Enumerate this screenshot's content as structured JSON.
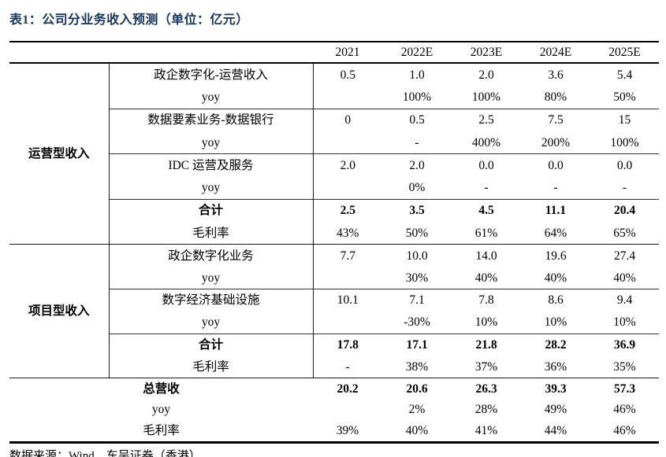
{
  "title": "表1：公司分业务收入预测（单位：亿元）",
  "header": {
    "years": [
      "2021",
      "2022E",
      "2023E",
      "2024E",
      "2025E"
    ]
  },
  "table": {
    "sections": [
      {
        "group": "运营型收入",
        "rows": [
          {
            "label": "政企数字化-运营收入",
            "bold": false,
            "divider_below": false,
            "values": [
              "0.5",
              "1.0",
              "2.0",
              "3.6",
              "5.4"
            ]
          },
          {
            "label": "yoy",
            "bold": false,
            "divider_below": true,
            "values": [
              "",
              "100%",
              "100%",
              "80%",
              "50%"
            ]
          },
          {
            "label": "数据要素业务-数据银行",
            "bold": false,
            "divider_below": false,
            "values": [
              "0",
              "0.5",
              "2.5",
              "7.5",
              "15"
            ]
          },
          {
            "label": "yoy",
            "bold": false,
            "divider_below": true,
            "values": [
              "",
              "-",
              "400%",
              "200%",
              "100%"
            ]
          },
          {
            "label": "IDC 运营及服务",
            "bold": false,
            "divider_below": false,
            "values": [
              "2.0",
              "2.0",
              "0.0",
              "0.0",
              "0.0"
            ]
          },
          {
            "label": "yoy",
            "bold": false,
            "divider_below": true,
            "values": [
              "",
              "0%",
              "-",
              "-",
              "-"
            ]
          },
          {
            "label": "合计",
            "bold": true,
            "divider_below": false,
            "values": [
              "2.5",
              "3.5",
              "4.5",
              "11.1",
              "20.4"
            ]
          },
          {
            "label": "毛利率",
            "bold": false,
            "divider_below": false,
            "values": [
              "43%",
              "50%",
              "61%",
              "64%",
              "65%"
            ]
          }
        ]
      },
      {
        "group": "项目型收入",
        "rows": [
          {
            "label": "政企数字化业务",
            "bold": false,
            "divider_below": false,
            "values": [
              "7.7",
              "10.0",
              "14.0",
              "19.6",
              "27.4"
            ]
          },
          {
            "label": "yoy",
            "bold": false,
            "divider_below": true,
            "values": [
              "",
              "30%",
              "40%",
              "40%",
              "40%"
            ]
          },
          {
            "label": "数字经济基础设施",
            "bold": false,
            "divider_below": false,
            "values": [
              "10.1",
              "7.1",
              "7.8",
              "8.6",
              "9.4"
            ]
          },
          {
            "label": "yoy",
            "bold": false,
            "divider_below": true,
            "values": [
              "",
              "-30%",
              "10%",
              "10%",
              "10%"
            ]
          },
          {
            "label": "合计",
            "bold": true,
            "divider_below": false,
            "values": [
              "17.8",
              "17.1",
              "21.8",
              "28.2",
              "36.9"
            ]
          },
          {
            "label": "毛利率",
            "bold": false,
            "divider_below": false,
            "values": [
              "-",
              "38%",
              "37%",
              "36%",
              "35%"
            ]
          }
        ]
      }
    ],
    "totals": [
      {
        "label": "总营收",
        "bold": true,
        "values": [
          "20.2",
          "20.6",
          "26.3",
          "39.3",
          "57.3"
        ]
      },
      {
        "label": "yoy",
        "bold": false,
        "values": [
          "",
          "2%",
          "28%",
          "49%",
          "46%"
        ]
      },
      {
        "label": "毛利率",
        "bold": false,
        "values": [
          "39%",
          "40%",
          "41%",
          "44%",
          "46%"
        ]
      }
    ]
  },
  "footer": "数据来源：Wind，东吴证券（香港）",
  "colors": {
    "title_navy": "#17365d",
    "rule_black": "#000000",
    "background": "#ffffff"
  }
}
